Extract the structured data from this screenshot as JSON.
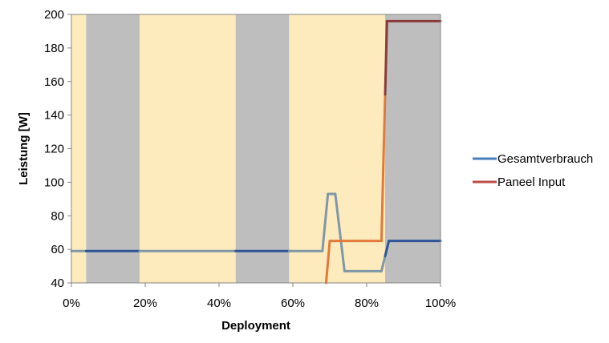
{
  "chart_data": {
    "type": "line",
    "xlabel": "Deployment",
    "ylabel": "Leistung [W]",
    "xlim": [
      0,
      100
    ],
    "ylim": [
      40,
      200
    ],
    "x_ticks": [
      "0%",
      "20%",
      "40%",
      "60%",
      "80%",
      "100%"
    ],
    "x_tick_values": [
      0,
      20,
      40,
      60,
      80,
      100
    ],
    "y_ticks": [
      "40",
      "60",
      "80",
      "100",
      "120",
      "140",
      "160",
      "180",
      "200"
    ],
    "y_tick_values": [
      40,
      60,
      80,
      100,
      120,
      140,
      160,
      180,
      200
    ],
    "grid": false,
    "legend_position": "right",
    "background_bands": [
      {
        "from": 0,
        "to": 4,
        "phase": "sunlight",
        "color": "#fdebbd"
      },
      {
        "from": 4,
        "to": 18.5,
        "phase": "eclipse",
        "color": "#bebebe"
      },
      {
        "from": 18.5,
        "to": 44.5,
        "phase": "sunlight",
        "color": "#fdebbd"
      },
      {
        "from": 44.5,
        "to": 59,
        "phase": "eclipse",
        "color": "#bebebe"
      },
      {
        "from": 59,
        "to": 85,
        "phase": "sunlight",
        "color": "#fdebbd"
      },
      {
        "from": 85,
        "to": 100,
        "phase": "eclipse",
        "color": "#bebebe"
      }
    ],
    "series": [
      {
        "name": "Gesamtverbrauch",
        "color": "#4a7ebb",
        "x": [
          0,
          68,
          69.5,
          71.5,
          74,
          84,
          86,
          100
        ],
        "y": [
          59,
          59,
          93,
          93,
          47,
          47,
          65,
          65
        ]
      },
      {
        "name": "Paneel Input",
        "color": "#be4b48",
        "x": [
          69,
          70,
          84,
          85.5,
          100
        ],
        "y": [
          40,
          65,
          65,
          196,
          196
        ]
      }
    ]
  }
}
